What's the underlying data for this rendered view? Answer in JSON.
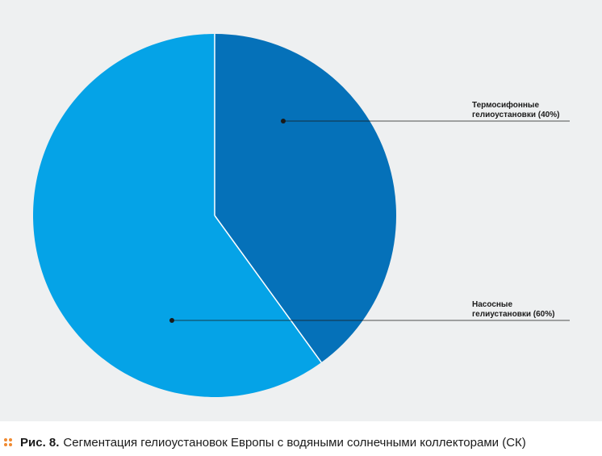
{
  "chart_data": {
    "type": "pie",
    "slices": [
      {
        "label_lines": [
          "Термосифонные",
          "гелиоустановки (40%)"
        ],
        "value": 40,
        "color": "#0571b9"
      },
      {
        "label_lines": [
          "Насосные",
          "гелиустановки (60%)"
        ],
        "value": 60,
        "color": "#05a3e7"
      }
    ],
    "start_angle": "12 o'clock",
    "direction": "clockwise",
    "legend": "right, with leader lines",
    "pie_edge_color": "#ffffff",
    "leader_color": "#1a1a1a"
  },
  "caption": {
    "label": "Рис. 8.",
    "text": "Сегментация гелиоустановок Европы с водяными солнечными коллекторами (СК)",
    "marker_color": "#f08a30"
  },
  "panel": {
    "background": "#eef0f1"
  }
}
